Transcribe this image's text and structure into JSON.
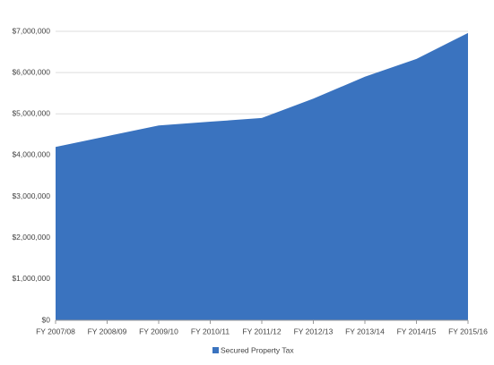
{
  "chart_data": {
    "type": "area",
    "categories": [
      "FY 2007/08",
      "FY 2008/09",
      "FY 2009/10",
      "FY 2010/11",
      "FY 2011/12",
      "FY 2012/13",
      "FY 2013/14",
      "FY 2014/15",
      "FY 2015/16"
    ],
    "series": [
      {
        "name": "Secured Property Tax",
        "color": "#3a73bf",
        "values": [
          4200000,
          4460000,
          4720000,
          4810000,
          4900000,
          5370000,
          5900000,
          6330000,
          6960000
        ]
      }
    ],
    "ylim": [
      0,
      7000000
    ],
    "yticks": [
      {
        "value": 0,
        "label": "$0"
      },
      {
        "value": 1000000,
        "label": "$1,000,000"
      },
      {
        "value": 2000000,
        "label": "$2,000,000"
      },
      {
        "value": 3000000,
        "label": "$3,000,000"
      },
      {
        "value": 4000000,
        "label": "$4,000,000"
      },
      {
        "value": 5000000,
        "label": "$5,000,000"
      },
      {
        "value": 6000000,
        "label": "$6,000,000"
      },
      {
        "value": 7000000,
        "label": "$7,000,000"
      }
    ],
    "grid": true,
    "legend": "bottom"
  }
}
